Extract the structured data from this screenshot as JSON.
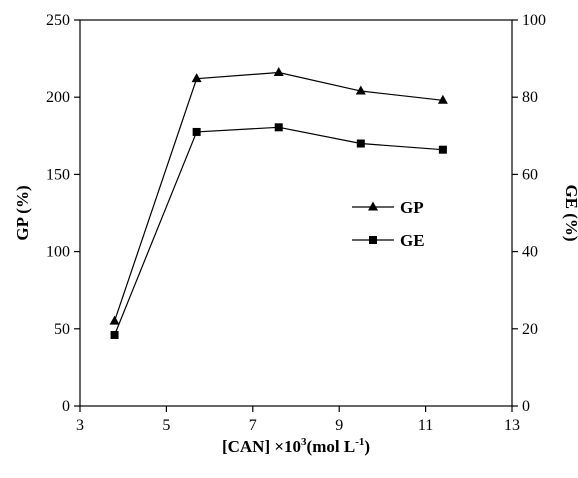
{
  "chart_data": {
    "type": "line",
    "x": [
      3.8,
      5.7,
      7.6,
      9.5,
      11.4
    ],
    "xlabel": {
      "main": "[CAN] ×10",
      "sup": "3",
      "unit": "(mol L",
      "unit_sup": "-1",
      "end": ")"
    },
    "xlim": [
      3,
      13
    ],
    "xticks": [
      "3",
      "5",
      "7",
      "9",
      "11",
      "13"
    ],
    "ylabel_left": "GP (%)",
    "ylim_left": [
      0,
      250
    ],
    "yticks_left": [
      "0",
      "50",
      "100",
      "150",
      "200",
      "250"
    ],
    "ylabel_right": "GE (%)",
    "ylim_right": [
      0,
      100
    ],
    "yticks_right": [
      "0",
      "20",
      "40",
      "60",
      "80",
      "100"
    ],
    "grid": false,
    "legend_position": "center-right",
    "series": [
      {
        "name": "GP",
        "axis": "left",
        "marker": "triangle",
        "values": [
          55,
          212,
          216,
          204,
          198
        ]
      },
      {
        "name": "GE",
        "axis": "right",
        "marker": "square",
        "values": [
          18.4,
          71,
          72.2,
          68,
          66.4
        ]
      }
    ]
  }
}
